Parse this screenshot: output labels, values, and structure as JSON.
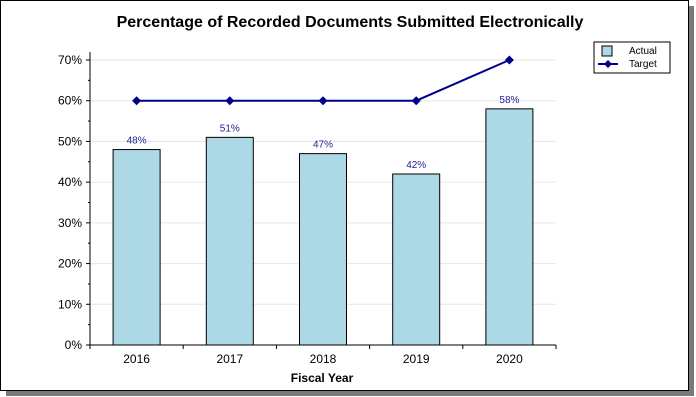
{
  "chart_data": {
    "type": "bar",
    "title": "Percentage of Recorded Documents Submitted Electronically",
    "xlabel": "Fiscal Year",
    "ylabel": "",
    "categories": [
      "2016",
      "2017",
      "2018",
      "2019",
      "2020"
    ],
    "ylim": [
      0,
      70
    ],
    "yticks": [
      0,
      10,
      20,
      30,
      40,
      50,
      60,
      70
    ],
    "ytick_labels": [
      "0%",
      "10%",
      "20%",
      "30%",
      "40%",
      "50%",
      "60%",
      "70%"
    ],
    "grid": "horizontal",
    "legend_position": "top-right",
    "series": [
      {
        "name": "Actual",
        "kind": "bar",
        "values": [
          48,
          51,
          47,
          42,
          58
        ],
        "labels": [
          "48%",
          "51%",
          "47%",
          "42%",
          "58%"
        ],
        "color": "#add8e6"
      },
      {
        "name": "Target",
        "kind": "line",
        "values": [
          60,
          60,
          60,
          60,
          70
        ],
        "color": "#00008b"
      }
    ]
  }
}
